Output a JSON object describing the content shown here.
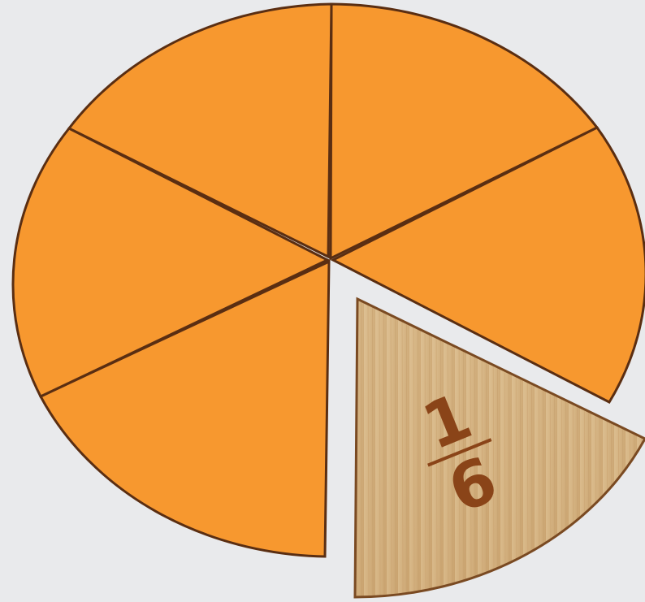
{
  "fraction": {
    "numerator": "1",
    "denominator": "6"
  }
}
